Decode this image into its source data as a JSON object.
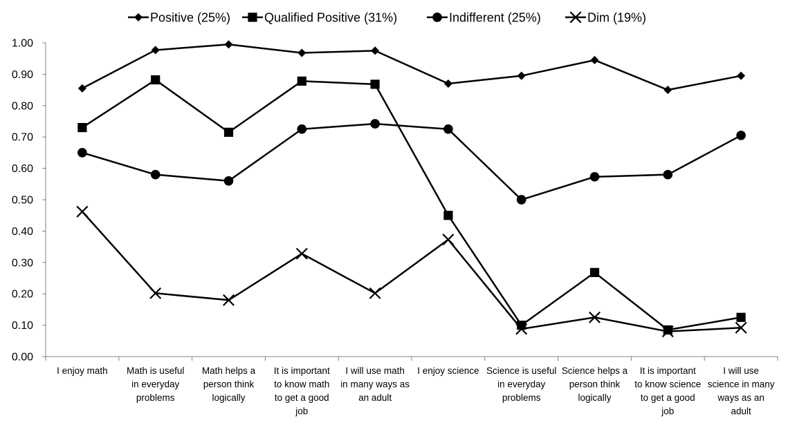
{
  "chart_data": {
    "type": "line",
    "title": "",
    "xlabel": "",
    "ylabel": "",
    "ylim": [
      0,
      1
    ],
    "yticks": [
      "0.00",
      "0.10",
      "0.20",
      "0.30",
      "0.40",
      "0.50",
      "0.60",
      "0.70",
      "0.80",
      "0.90",
      "1.00"
    ],
    "grid": false,
    "legend_position": "top",
    "categories": [
      "I enjoy math",
      "Math is useful in everyday problems",
      "Math helps a person think logically",
      "It is important to know math to get a good job",
      "I will use math in many ways as an adult",
      "I enjoy science",
      "Science is useful in everyday problems",
      "Science helps a person think logically",
      "It is important to know science to get a good job",
      "I will use science in many ways as an adult"
    ],
    "category_lines": [
      [
        "I enjoy math"
      ],
      [
        "Math is useful",
        "in everyday",
        "problems"
      ],
      [
        "Math helps a",
        "person think",
        "logically"
      ],
      [
        "It is important",
        "to know math",
        "to get a good",
        "job"
      ],
      [
        "I will use math",
        "in many ways as",
        "an adult"
      ],
      [
        "I enjoy science"
      ],
      [
        "Science is useful",
        "in everyday",
        "problems"
      ],
      [
        "Science helps a",
        "person think",
        "logically"
      ],
      [
        "It is important",
        "to know science",
        "to get a good",
        "job"
      ],
      [
        "I will use",
        "science in many",
        "ways as an",
        "adult"
      ]
    ],
    "series": [
      {
        "name": "Positive (25%)",
        "marker": "diamond",
        "color": "#000000",
        "values": [
          0.855,
          0.977,
          0.995,
          0.968,
          0.975,
          0.87,
          0.895,
          0.945,
          0.85,
          0.895
        ]
      },
      {
        "name": "Qualified Positive (31%)",
        "marker": "square",
        "color": "#000000",
        "values": [
          0.73,
          0.882,
          0.715,
          0.878,
          0.868,
          0.45,
          0.1,
          0.268,
          0.085,
          0.125
        ]
      },
      {
        "name": "Indifferent (25%)",
        "marker": "circle",
        "color": "#000000",
        "values": [
          0.65,
          0.58,
          0.56,
          0.725,
          0.742,
          0.725,
          0.5,
          0.573,
          0.58,
          0.705
        ]
      },
      {
        "name": "Dim (19%)",
        "marker": "x",
        "color": "#000000",
        "values": [
          0.462,
          0.202,
          0.18,
          0.328,
          0.202,
          0.373,
          0.088,
          0.125,
          0.08,
          0.092
        ]
      }
    ]
  }
}
